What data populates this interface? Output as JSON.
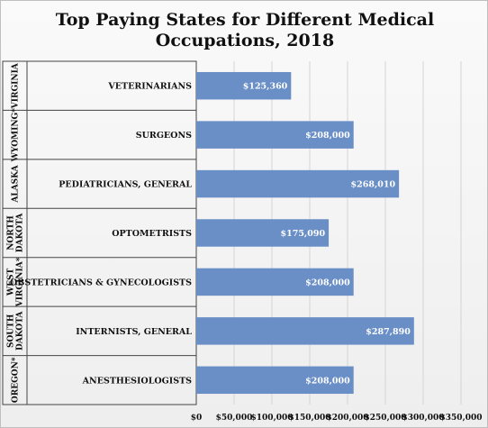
{
  "chart_data": {
    "type": "bar",
    "orientation": "horizontal",
    "title": [
      "Top Paying States for Different Medical",
      "Occupations, 2018"
    ],
    "groups": [
      "VIRGINIA",
      "WYOMING*",
      "ALASKA",
      "NORTH DAKOTA",
      "WEST VIRGINIA*",
      "SOUTH DAKOTA",
      "OREGON*"
    ],
    "categories": [
      "VETERINARIANS",
      "SURGEONS",
      "PEDIATRICIANS, GENERAL",
      "OPTOMETRISTS",
      "OBSTETRICIANS & GYNECOLOGISTS",
      "INTERNISTS, GENERAL",
      "ANESTHESIOLOGISTS"
    ],
    "values": [
      125360,
      208000,
      268010,
      175090,
      208000,
      287890,
      208000
    ],
    "value_labels": [
      "$125,360",
      "$208,000",
      "$268,010",
      "$175,090",
      "$208,000",
      "$287,890",
      "$208,000"
    ],
    "xlim": [
      0,
      350000
    ],
    "xticks": [
      0,
      50000,
      100000,
      150000,
      200000,
      250000,
      300000,
      350000
    ],
    "xtick_labels": [
      "$0",
      "$50,000",
      "$100,000",
      "$150,000",
      "$200,000",
      "$250,000",
      "$300,000",
      "$350,000"
    ],
    "grid": "vertical",
    "bar_color": "#6a8fc7",
    "legend": "none"
  }
}
